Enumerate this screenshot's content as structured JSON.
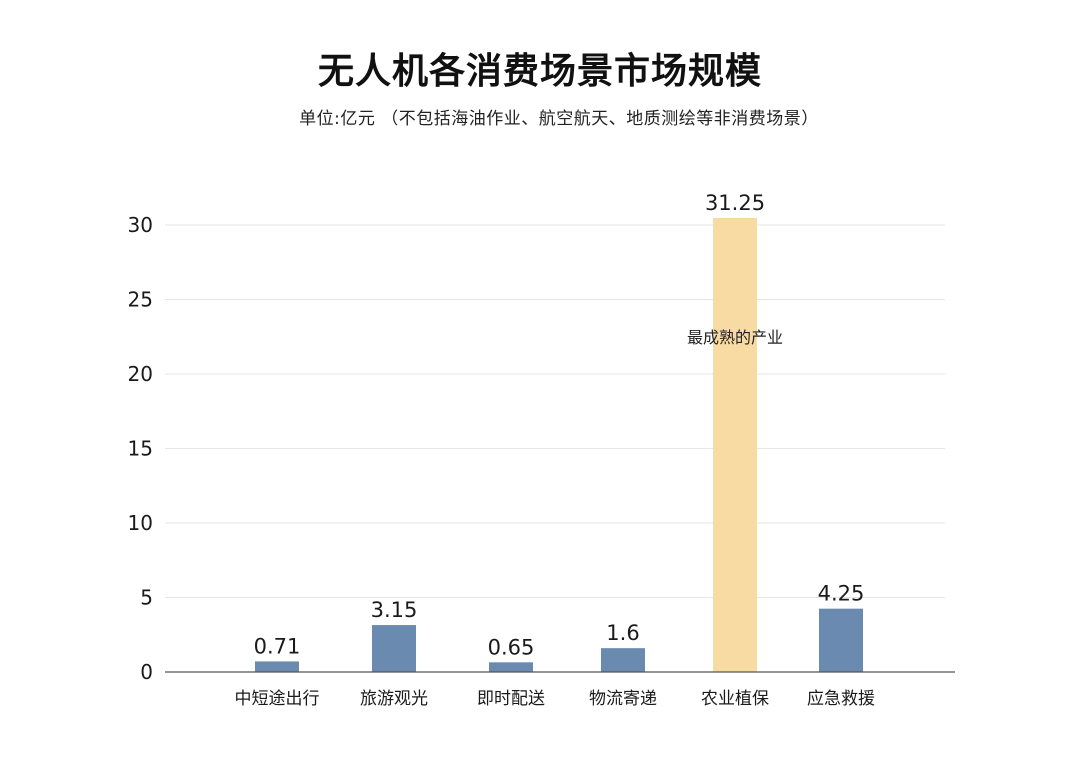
{
  "chart_data": {
    "type": "bar",
    "title": "无人机各消费场景市场规模",
    "subtitle": "单位:亿元 （不包括海油作业、航空航天、地质测绘等非消费场景）",
    "xlabel": "",
    "ylabel": "",
    "categories": [
      "中短途出行",
      "旅游观光",
      "即时配送",
      "物流寄递",
      "农业植保",
      "应急救援"
    ],
    "values": [
      0.71,
      3.15,
      0.65,
      1.6,
      31.25,
      4.25
    ],
    "value_labels": [
      "0.71",
      "3.15",
      "0.65",
      "1.6",
      "31.25",
      "4.25"
    ],
    "ylim": [
      0,
      30
    ],
    "yticks": [
      0,
      5,
      10,
      15,
      20,
      25,
      30
    ],
    "grid": true,
    "legend": "none",
    "colors": {
      "default_bar": "#6a8ab0",
      "highlight_bar": "#f8dba3",
      "gridline": "#e6e6e6",
      "axis": "#555555"
    },
    "highlight_index": 4,
    "annotation": {
      "text": "最成熟的产业",
      "category_index": 4,
      "y": 22.5
    }
  }
}
